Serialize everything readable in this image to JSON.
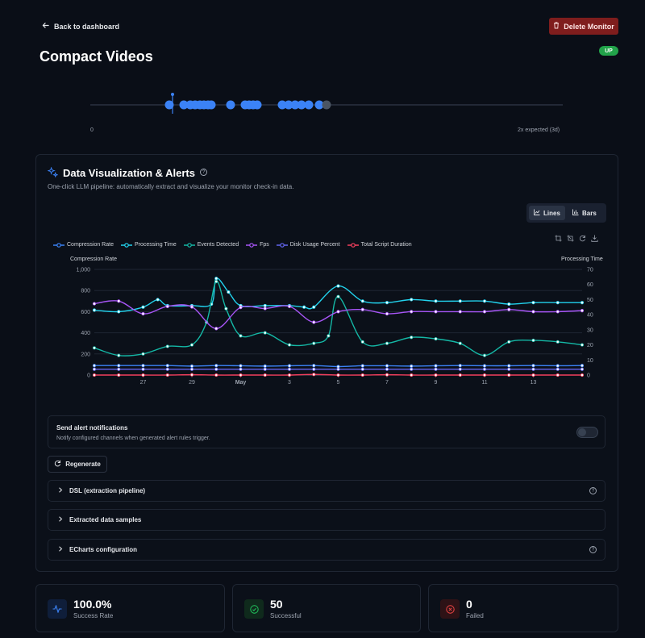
{
  "nav": {
    "back_label": "Back to dashboard"
  },
  "header": {
    "title": "Compact Videos",
    "delete_label": "Delete Monitor",
    "status_badge": "UP"
  },
  "timeline": {
    "left_label": "0",
    "right_label": "2x expected (3d)"
  },
  "section": {
    "title": "Data Visualization & Alerts",
    "subtitle": "One-click LLM pipeline: automatically extract and visualize your monitor check-in data.",
    "view_lines": "Lines",
    "view_bars": "Bars"
  },
  "alerts": {
    "title": "Send alert notifications",
    "description": "Notify configured channels when generated alert rules trigger.",
    "enabled": false
  },
  "regenerate_label": "Regenerate",
  "panels": {
    "dsl": "DSL (extraction pipeline)",
    "samples": "Extracted data samples",
    "echarts": "ECharts configuration"
  },
  "stats": [
    {
      "value": "100.0%",
      "label": "Success Rate"
    },
    {
      "value": "50",
      "label": "Successful"
    },
    {
      "value": "0",
      "label": "Failed"
    }
  ],
  "colors": {
    "compression": "#3b82f6",
    "processing": "#22d3ee",
    "events": "#14b8a6",
    "fps": "#a855f7",
    "disk": "#6366f1",
    "script": "#f43f5e"
  },
  "chart_data": {
    "type": "line",
    "y_left_label": "Compression Rate",
    "y_right_label": "Processing Time",
    "y_left_ticks": [
      "1,000",
      "800",
      "600",
      "400",
      "200",
      "0"
    ],
    "y_right_ticks": [
      "70",
      "60",
      "50",
      "40",
      "30",
      "20",
      "10",
      "0"
    ],
    "y_left_range": [
      0,
      1000
    ],
    "y_right_range": [
      0,
      70
    ],
    "x_ticks": [
      "27",
      "29",
      "May",
      "3",
      "5",
      "7",
      "9",
      "11",
      "13"
    ],
    "x_range": [
      0,
      20
    ],
    "x_tick_positions": [
      2,
      4,
      6,
      8,
      10,
      12,
      14,
      16,
      18
    ],
    "series": [
      {
        "name": "Compression Rate",
        "axis": "left",
        "color": "#3b82f6",
        "x": [
          0,
          1,
          2,
          3,
          4,
          5,
          6,
          7,
          8,
          9,
          10,
          11,
          12,
          13,
          14,
          15,
          16,
          17,
          18,
          19,
          20
        ],
        "y": [
          90,
          90,
          90,
          90,
          85,
          90,
          88,
          85,
          88,
          90,
          80,
          88,
          88,
          85,
          88,
          90,
          88,
          88,
          90,
          88,
          90
        ]
      },
      {
        "name": "Processing Time",
        "axis": "right",
        "color": "#22d3ee",
        "x": [
          0,
          1,
          2,
          2.6,
          3,
          4,
          4.8,
          5,
          5.5,
          6,
          7,
          8,
          8.6,
          9,
          10,
          11,
          12,
          13,
          14,
          15,
          16,
          17,
          18,
          19,
          20
        ],
        "y": [
          43,
          42,
          45,
          50,
          46,
          46,
          47,
          64,
          55,
          46,
          46,
          46,
          45,
          45,
          59,
          49,
          48,
          50,
          49,
          49,
          49,
          47,
          48,
          48,
          48
        ]
      },
      {
        "name": "Events Detected",
        "axis": "right",
        "color": "#14b8a6",
        "x": [
          0,
          1,
          2,
          3,
          4,
          4.6,
          5,
          5.4,
          6,
          7,
          8,
          9,
          9.6,
          10,
          11,
          12,
          13,
          14,
          15,
          16,
          17,
          18,
          19,
          20
        ],
        "y": [
          18,
          13,
          14,
          19,
          20,
          35,
          62,
          44,
          26,
          28,
          20,
          21,
          26,
          52,
          22,
          21,
          25,
          24,
          21,
          13,
          22,
          23,
          22,
          20
        ]
      },
      {
        "name": "Fps",
        "axis": "left",
        "color": "#a855f7",
        "x": [
          0,
          1,
          2,
          3,
          4,
          5,
          6,
          7,
          8,
          9,
          10,
          11,
          12,
          13,
          14,
          15,
          16,
          17,
          18,
          19,
          20
        ],
        "y": [
          675,
          700,
          580,
          650,
          645,
          440,
          640,
          630,
          650,
          500,
          600,
          620,
          580,
          600,
          600,
          600,
          600,
          620,
          600,
          600,
          610
        ]
      },
      {
        "name": "Disk Usage Percent",
        "axis": "left",
        "color": "#6366f1",
        "x": [
          0,
          1,
          2,
          3,
          4,
          5,
          6,
          7,
          8,
          9,
          10,
          11,
          12,
          13,
          14,
          15,
          16,
          17,
          18,
          19,
          20
        ],
        "y": [
          55,
          55,
          55,
          55,
          55,
          55,
          55,
          55,
          55,
          55,
          55,
          55,
          55,
          55,
          55,
          55,
          55,
          55,
          55,
          55,
          55
        ]
      },
      {
        "name": "Total Script Duration",
        "axis": "right",
        "color": "#f43f5e",
        "x": [
          0,
          1,
          2,
          3,
          4,
          5,
          6,
          7,
          8,
          9,
          10,
          11,
          12,
          13,
          14,
          15,
          16,
          17,
          18,
          19,
          20
        ],
        "y": [
          0,
          0,
          0,
          0,
          0.2,
          0,
          0,
          0,
          0,
          0.4,
          0,
          0,
          0.2,
          0,
          0,
          0,
          0,
          0,
          0,
          0,
          0
        ]
      }
    ]
  }
}
